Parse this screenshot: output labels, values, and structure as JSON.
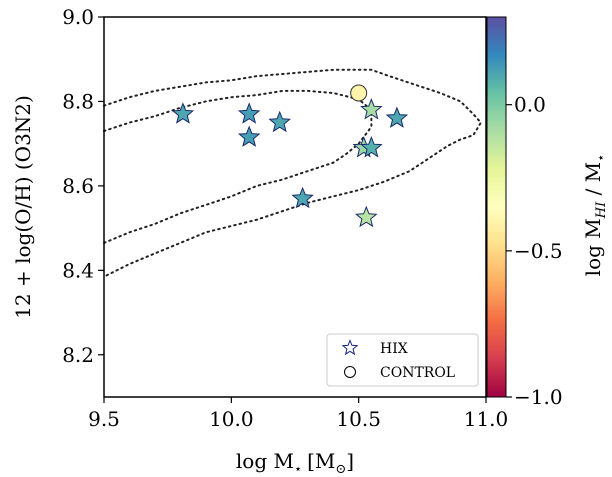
{
  "chart_data": {
    "type": "scatter",
    "xlabel_main": "log M",
    "xlabel_sub": "⋆",
    "xlabel_unit": "[M",
    "xlabel_unit_sub": "⊙",
    "xlabel_unit_end": "]",
    "ylabel": "12 + log(O/H) (O3N2)",
    "colorbar_label_main": "log M",
    "colorbar_label_sub": "HI",
    "colorbar_label_rest": " / M",
    "colorbar_label_star": "⋆",
    "xlim": [
      9.5,
      11.0
    ],
    "ylim": [
      8.1,
      9.0
    ],
    "xticks": [
      9.5,
      10.0,
      10.5,
      11.0
    ],
    "xtick_labels": [
      "9.5",
      "10.0",
      "10.5",
      "11.0"
    ],
    "yticks": [
      8.2,
      8.4,
      8.6,
      8.8,
      9.0
    ],
    "ytick_labels": [
      "8.2",
      "8.4",
      "8.6",
      "8.8",
      "9.0"
    ],
    "colorbar": {
      "range": [
        -1.0,
        0.3
      ],
      "ticks": [
        -1.0,
        -0.5,
        0.0
      ],
      "tick_labels": [
        "−1.0",
        "−0.5",
        "0.0"
      ],
      "colormap": "Spectral"
    },
    "legend": {
      "placement": "lower-right",
      "entries": [
        "HIX",
        "CONTROL"
      ]
    },
    "series": [
      {
        "name": "HIX",
        "marker": "star",
        "points": [
          {
            "x": 9.81,
            "y": 8.77,
            "c": 0.1
          },
          {
            "x": 10.07,
            "y": 8.77,
            "c": 0.12
          },
          {
            "x": 10.07,
            "y": 8.715,
            "c": 0.12
          },
          {
            "x": 10.19,
            "y": 8.75,
            "c": 0.1
          },
          {
            "x": 10.28,
            "y": 8.57,
            "c": 0.1
          },
          {
            "x": 10.55,
            "y": 8.78,
            "c": -0.08
          },
          {
            "x": 10.52,
            "y": 8.69,
            "c": -0.06
          },
          {
            "x": 10.55,
            "y": 8.69,
            "c": 0.08
          },
          {
            "x": 10.65,
            "y": 8.76,
            "c": 0.1
          },
          {
            "x": 10.53,
            "y": 8.525,
            "c": -0.12
          }
        ]
      },
      {
        "name": "CONTROL",
        "marker": "circle",
        "points": [
          {
            "x": 10.5,
            "y": 8.82,
            "c": -0.4
          }
        ]
      }
    ],
    "contours": [
      {
        "style": "dotted",
        "points": [
          [
            9.5,
            8.79
          ],
          [
            9.6,
            8.81
          ],
          [
            9.7,
            8.825
          ],
          [
            9.8,
            8.835
          ],
          [
            9.9,
            8.845
          ],
          [
            10.0,
            8.85
          ],
          [
            10.1,
            8.86
          ],
          [
            10.2,
            8.865
          ],
          [
            10.3,
            8.87
          ],
          [
            10.4,
            8.875
          ],
          [
            10.5,
            8.875
          ],
          [
            10.55,
            8.875
          ],
          [
            10.62,
            8.86
          ],
          [
            10.72,
            8.84
          ],
          [
            10.82,
            8.82
          ],
          [
            10.9,
            8.8
          ],
          [
            10.95,
            8.77
          ],
          [
            10.98,
            8.75
          ],
          [
            10.95,
            8.72
          ],
          [
            10.9,
            8.71
          ],
          [
            10.85,
            8.695
          ],
          [
            10.8,
            8.675
          ],
          [
            10.75,
            8.655
          ],
          [
            10.7,
            8.635
          ],
          [
            10.6,
            8.61
          ],
          [
            10.5,
            8.59
          ],
          [
            10.4,
            8.575
          ],
          [
            10.3,
            8.56
          ],
          [
            10.2,
            8.54
          ],
          [
            10.1,
            8.52
          ],
          [
            10.0,
            8.505
          ],
          [
            9.9,
            8.49
          ],
          [
            9.8,
            8.465
          ],
          [
            9.7,
            8.44
          ],
          [
            9.6,
            8.415
          ],
          [
            9.5,
            8.385
          ]
        ]
      },
      {
        "style": "dotted",
        "points": [
          [
            9.5,
            8.73
          ],
          [
            9.6,
            8.75
          ],
          [
            9.7,
            8.765
          ],
          [
            9.8,
            8.785
          ],
          [
            9.9,
            8.8
          ],
          [
            10.0,
            8.81
          ],
          [
            10.1,
            8.815
          ],
          [
            10.2,
            8.825
          ],
          [
            10.3,
            8.825
          ],
          [
            10.4,
            8.82
          ],
          [
            10.5,
            8.805
          ],
          [
            10.55,
            8.78
          ],
          [
            10.55,
            8.74
          ],
          [
            10.5,
            8.7
          ],
          [
            10.45,
            8.675
          ],
          [
            10.4,
            8.655
          ],
          [
            10.3,
            8.635
          ],
          [
            10.2,
            8.615
          ],
          [
            10.1,
            8.6
          ],
          [
            10.0,
            8.575
          ],
          [
            9.9,
            8.555
          ],
          [
            9.8,
            8.535
          ],
          [
            9.7,
            8.51
          ],
          [
            9.6,
            8.49
          ],
          [
            9.5,
            8.465
          ]
        ]
      }
    ]
  }
}
